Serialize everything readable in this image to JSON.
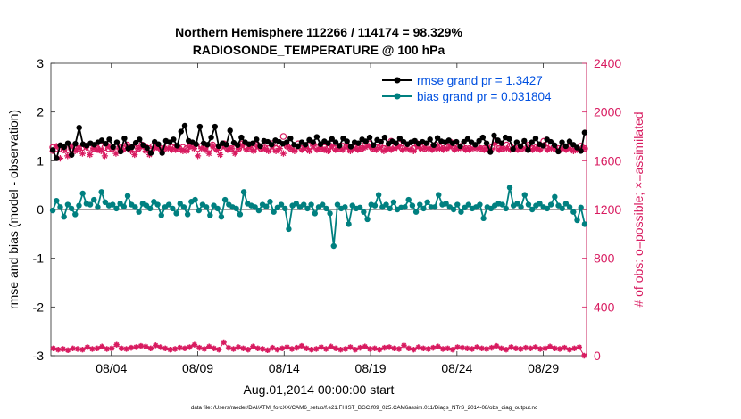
{
  "chart_data": {
    "type": "line",
    "title_line1": "Northern Hemisphere 112266 / 114174 = 98.329%",
    "title_line2": "RADIOSONDE_TEMPERATURE @ 100 hPa",
    "xlabel": "Aug.01,2014 00:00:00 start",
    "ylabel_left": "rmse and bias (model - observation)",
    "ylabel_right": "# of obs: o=possible; ×=assimilated",
    "footnote": "data file: /Users/raeder/DAI/ATM_forcXX/CAM6_setup/f.e21.FHIST_BGC.f09_025.CAM6assim.011/Diags_NTrS_2014-08/obs_diag_output.nc",
    "xlim": [
      0,
      31
    ],
    "x_ticks": [
      {
        "value": 3.5,
        "label": "08/04"
      },
      {
        "value": 8.5,
        "label": "08/09"
      },
      {
        "value": 13.5,
        "label": "08/14"
      },
      {
        "value": 18.5,
        "label": "08/19"
      },
      {
        "value": 23.5,
        "label": "08/24"
      },
      {
        "value": 28.5,
        "label": "08/29"
      }
    ],
    "ylim_left": [
      -3,
      3
    ],
    "y_ticks_left": [
      "-3",
      "-2",
      "-1",
      "0",
      "1",
      "2",
      "3"
    ],
    "ylim_right": [
      0,
      2400
    ],
    "y_ticks_right": [
      "0",
      "400",
      "800",
      "1200",
      "1600",
      "2000",
      "2400"
    ],
    "legend": [
      {
        "name": "rmse grand pr = 1.3427",
        "color": "#000000"
      },
      {
        "name": "bias grand pr = 0.031804",
        "color": "#008080"
      }
    ],
    "colors": {
      "rmse": "#000000",
      "bias": "#008080",
      "obs": "#d81b60",
      "zero_line": "#a0a0a0",
      "legend_text": "#0050e0"
    },
    "series": [
      {
        "name": "rmse",
        "axis": "left",
        "values": [
          1.22,
          1.05,
          1.32,
          1.28,
          1.36,
          1.12,
          1.35,
          1.68,
          1.34,
          1.31,
          1.36,
          1.33,
          1.38,
          1.42,
          1.35,
          1.44,
          1.28,
          1.38,
          1.19,
          1.46,
          1.25,
          1.28,
          1.37,
          1.44,
          1.32,
          1.26,
          1.16,
          1.39,
          1.34,
          1.16,
          1.41,
          1.38,
          1.44,
          1.31,
          1.6,
          1.72,
          1.41,
          1.38,
          1.34,
          1.7,
          1.36,
          1.33,
          1.48,
          1.7,
          1.3,
          1.36,
          1.33,
          1.62,
          1.37,
          1.32,
          1.48,
          1.38,
          1.34,
          1.36,
          1.44,
          1.3,
          1.41,
          1.39,
          1.33,
          1.42,
          1.39,
          1.35,
          1.38,
          1.46,
          1.33,
          1.3,
          1.38,
          1.33,
          1.43,
          1.38,
          1.49,
          1.34,
          1.4,
          1.36,
          1.45,
          1.38,
          1.31,
          1.46,
          1.4,
          1.29,
          1.38,
          1.36,
          1.44,
          1.4,
          1.48,
          1.32,
          1.43,
          1.39,
          1.48,
          1.35,
          1.4,
          1.36,
          1.46,
          1.39,
          1.34,
          1.38,
          1.41,
          1.35,
          1.39,
          1.36,
          1.44,
          1.32,
          1.47,
          1.4,
          1.38,
          1.42,
          1.36,
          1.39,
          1.3,
          1.39,
          1.45,
          1.38,
          1.33,
          1.41,
          1.48,
          1.36,
          1.18,
          1.52,
          1.42,
          1.36,
          1.48,
          1.45,
          1.24,
          1.38,
          1.3,
          1.41,
          1.22,
          1.38,
          1.46,
          1.34,
          1.31,
          1.44,
          1.39,
          1.32,
          1.19,
          1.38,
          1.3,
          1.4,
          1.33,
          1.27,
          1.2,
          1.58
        ],
        "note": "6-hourly values, t = (i+0.5)*0.25 days (subset rendered every 6h)"
      },
      {
        "name": "bias",
        "axis": "left",
        "values": [
          -0.02,
          0.18,
          0.05,
          -0.15,
          0.1,
          0.02,
          -0.1,
          0.08,
          0.33,
          0.12,
          0.1,
          0.2,
          0.05,
          0.36,
          0.15,
          0.08,
          0.1,
          0.02,
          0.12,
          0.06,
          0.28,
          0.1,
          0.05,
          -0.05,
          0.12,
          0.08,
          0.02,
          0.16,
          0.1,
          -0.12,
          0.05,
          0.1,
          0.02,
          -0.08,
          0.12,
          0.05,
          -0.1,
          0.16,
          0.2,
          -0.02,
          0.1,
          0.05,
          -0.12,
          0.08,
          0.02,
          -0.15,
          0.2,
          0.1,
          0.05,
          0.02,
          -0.1,
          0.36,
          0.12,
          0.08,
          0.05,
          -0.02,
          0.1,
          0.06,
          0.16,
          -0.05,
          0.04,
          0.1,
          0.02,
          -0.4,
          0.08,
          0.12,
          0.05,
          0.1,
          0.02,
          0.1,
          -0.08,
          0.05,
          0.1,
          0.02,
          -0.08,
          -0.75,
          0.1,
          0.02,
          0.05,
          -0.3,
          0.08,
          0.02,
          0.04,
          -0.05,
          -0.2,
          0.1,
          0.08,
          0.3,
          0.05,
          0.1,
          0.02,
          0.15,
          0.0,
          0.04,
          0.05,
          0.2,
          0.08,
          -0.05,
          0.1,
          0.02,
          0.15,
          0.05,
          0.05,
          0.3,
          0.1,
          0.12,
          0.05,
          0.0,
          0.1,
          -0.05,
          0.04,
          0.1,
          0.02,
          0.05,
          0.1,
          -0.18,
          0.05,
          0.02,
          0.08,
          0.12,
          0.1,
          0.02,
          0.45,
          0.08,
          0.12,
          0.05,
          0.3,
          0.1,
          0.0,
          0.08,
          0.12,
          0.05,
          0.02,
          0.1,
          0.26,
          0.08,
          0.02,
          0.12,
          0.05,
          -0.05,
          -0.22,
          0.04,
          -0.3
        ],
        "note": "6-hourly values"
      },
      {
        "name": "obs_possible",
        "axis": "right",
        "values": [
          1710,
          1700,
          1700,
          1690,
          1690,
          1700,
          1710,
          1700,
          1710,
          1720,
          1705,
          1700,
          1700,
          1720,
          1710,
          1700,
          1700,
          1720,
          1710,
          1700,
          1730,
          1710,
          1700,
          1700,
          1730,
          1710,
          1700,
          1720,
          1715,
          1700,
          1700,
          1720,
          1710,
          1710,
          1700,
          1710,
          1700,
          1720,
          1725,
          1700,
          1720,
          1710,
          1700,
          1730,
          1700,
          1710,
          1740,
          1700,
          1700,
          1700,
          1700,
          1740,
          1710,
          1700,
          1700,
          1730,
          1700,
          1705,
          1700,
          1740,
          1700,
          1730,
          1800,
          1720,
          1700,
          1700,
          1740,
          1700,
          1710,
          1720,
          1740,
          1705,
          1700,
          1710,
          1700,
          1740,
          1700,
          1700,
          1720,
          1720,
          1700,
          1710,
          1700,
          1700,
          1730,
          1740,
          1700,
          1710,
          1720,
          1700,
          1705,
          1760,
          1710,
          1740,
          1700,
          1730,
          1710,
          1700,
          1740,
          1710,
          1700,
          1720,
          1700,
          1730,
          1710,
          1700,
          1710,
          1750,
          1700,
          1710,
          1720,
          1700,
          1700,
          1715,
          1720,
          1700,
          1700,
          1700,
          1710,
          1760,
          1700,
          1700,
          1730,
          1720,
          1700,
          1700,
          1700,
          1720,
          1730,
          1700,
          1710,
          1700,
          1760,
          1700,
          1720,
          1700,
          1700,
          1710,
          1700,
          1710,
          1700,
          1700,
          1720,
          1700
        ],
        "note": "circles (possible)"
      },
      {
        "name": "obs_assimilated",
        "axis": "right",
        "values": [
          1680,
          1720,
          1620,
          1700,
          1640,
          1720,
          1680,
          1700,
          1660,
          1710,
          1650,
          1700,
          1690,
          1680,
          1640,
          1720,
          1700,
          1660,
          1700,
          1690,
          1720,
          1680,
          1650,
          1700,
          1720,
          1680,
          1650,
          1700,
          1710,
          1690,
          1700,
          1700,
          1690,
          1690,
          1700,
          1680,
          1680,
          1720,
          1700,
          1640,
          1700,
          1690,
          1660,
          1720,
          1690,
          1650,
          1720,
          1690,
          1700,
          1660,
          1700,
          1730,
          1690,
          1710,
          1680,
          1720,
          1700,
          1700,
          1680,
          1720,
          1680,
          1700,
          1660,
          1720,
          1700,
          1680,
          1720,
          1690,
          1710,
          1680,
          1720,
          1690,
          1700,
          1690,
          1680,
          1720,
          1690,
          1700,
          1690,
          1720,
          1680,
          1700,
          1690,
          1700,
          1710,
          1720,
          1700,
          1690,
          1710,
          1680,
          1700,
          1690,
          1700,
          1720,
          1690,
          1700,
          1690,
          1680,
          1720,
          1700,
          1700,
          1700,
          1690,
          1700,
          1700,
          1690,
          1700,
          1720,
          1690,
          1700,
          1700,
          1690,
          1690,
          1700,
          1700,
          1700,
          1690,
          1700,
          1690,
          1740,
          1690,
          1700,
          1700,
          1690,
          1700,
          1690,
          1700,
          1700,
          1700,
          1690,
          1700,
          1690,
          1730,
          1690,
          1700,
          1700,
          1680,
          1700,
          1690,
          1700,
          1680,
          1690,
          1700,
          1700
        ],
        "note": "crosses (assimilated)"
      },
      {
        "name": "obs_low_count",
        "axis": "right",
        "values": [
          60,
          50,
          55,
          45,
          60,
          55,
          50,
          70,
          55,
          60,
          75,
          55,
          60,
          90,
          60,
          55,
          65,
          70,
          80,
          75,
          60,
          85,
          70,
          60,
          50,
          55,
          65,
          60,
          70,
          90,
          65,
          55,
          75,
          60,
          50,
          110,
          65,
          55,
          70,
          60,
          50,
          75,
          60,
          55,
          45,
          65,
          50,
          60,
          70,
          55,
          65,
          80,
          60,
          50,
          55,
          70,
          55,
          75,
          60,
          50,
          55,
          70,
          50,
          65,
          75,
          55,
          60,
          50,
          65,
          70,
          60,
          55,
          85,
          60,
          50,
          70,
          60,
          55,
          65,
          75,
          55,
          60,
          50,
          70,
          65,
          60,
          55,
          70,
          60,
          55,
          65,
          80,
          60,
          50,
          70,
          60,
          55,
          65,
          60,
          70,
          55,
          60,
          75,
          60,
          55,
          65,
          50,
          60,
          70,
          0
        ],
        "note": "bottom series near zero"
      }
    ]
  }
}
